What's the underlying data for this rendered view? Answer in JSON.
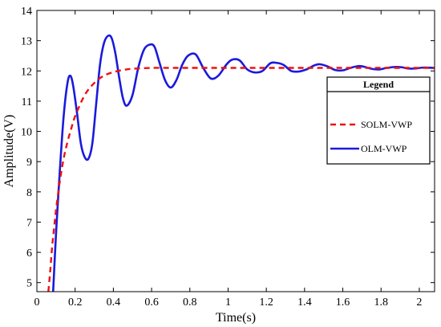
{
  "chart_data": {
    "type": "line",
    "xlabel": "Time(s)",
    "ylabel": "Amplitude(V)",
    "xlim": [
      0,
      2.08
    ],
    "ylim": [
      4.7,
      14
    ],
    "xticks": [
      "0",
      "0.2",
      "0.4",
      "0.6",
      "0.8",
      "1",
      "1.2",
      "1.4",
      "1.6",
      "1.8",
      "2"
    ],
    "xtick_values": [
      0,
      0.2,
      0.4,
      0.6,
      0.8,
      1.0,
      1.2,
      1.4,
      1.6,
      1.8,
      2.0
    ],
    "yticks": [
      "5",
      "6",
      "7",
      "8",
      "9",
      "10",
      "11",
      "12",
      "13",
      "14"
    ],
    "ytick_values": [
      5,
      6,
      7,
      8,
      9,
      10,
      11,
      12,
      13,
      14
    ],
    "grid": false,
    "legend": {
      "title": "Legend",
      "placement": "right"
    },
    "series": [
      {
        "name": "SOLM-VWP",
        "color": "#ee1111",
        "style": "dashed",
        "x": [
          0.06,
          0.07,
          0.08,
          0.09,
          0.1,
          0.12,
          0.14,
          0.16,
          0.18,
          0.2,
          0.25,
          0.3,
          0.35,
          0.4,
          0.45,
          0.5,
          0.6,
          0.7,
          0.8,
          1.0,
          1.2,
          1.4,
          1.6,
          1.8,
          2.0,
          2.08
        ],
        "y": [
          4.7,
          5.4,
          6.2,
          6.8,
          7.4,
          8.35,
          9.1,
          9.65,
          10.1,
          10.5,
          11.2,
          11.6,
          11.84,
          11.96,
          12.03,
          12.07,
          12.1,
          12.1,
          12.1,
          12.1,
          12.1,
          12.1,
          12.1,
          12.1,
          12.1,
          12.1
        ]
      },
      {
        "name": "OLM-VWP",
        "color": "#1a1add",
        "style": "solid",
        "x": [
          0.085,
          0.1,
          0.12,
          0.14,
          0.16,
          0.175,
          0.19,
          0.21,
          0.23,
          0.25,
          0.27,
          0.29,
          0.31,
          0.33,
          0.35,
          0.37,
          0.39,
          0.41,
          0.43,
          0.45,
          0.47,
          0.5,
          0.53,
          0.56,
          0.59,
          0.615,
          0.64,
          0.67,
          0.7,
          0.73,
          0.76,
          0.79,
          0.83,
          0.87,
          0.91,
          0.95,
          0.99,
          1.02,
          1.06,
          1.1,
          1.14,
          1.18,
          1.22,
          1.25,
          1.29,
          1.33,
          1.37,
          1.41,
          1.45,
          1.48,
          1.52,
          1.56,
          1.6,
          1.64,
          1.68,
          1.71,
          1.75,
          1.79,
          1.83,
          1.87,
          1.91,
          1.94,
          1.98,
          2.02,
          2.08
        ],
        "y": [
          4.7,
          6.6,
          8.7,
          10.5,
          11.6,
          11.84,
          11.5,
          10.6,
          9.6,
          9.15,
          9.1,
          9.6,
          10.9,
          12.2,
          12.9,
          13.15,
          13.1,
          12.6,
          11.8,
          11.1,
          10.85,
          11.2,
          12.1,
          12.7,
          12.87,
          12.8,
          12.3,
          11.7,
          11.45,
          11.7,
          12.2,
          12.5,
          12.55,
          12.1,
          11.75,
          11.85,
          12.2,
          12.37,
          12.35,
          12.05,
          11.95,
          12.0,
          12.25,
          12.27,
          12.2,
          12.0,
          11.98,
          12.05,
          12.18,
          12.22,
          12.15,
          12.03,
          12.02,
          12.1,
          12.16,
          12.14,
          12.07,
          12.05,
          12.1,
          12.13,
          12.12,
          12.08,
          12.08,
          12.11,
          12.1
        ]
      }
    ]
  }
}
